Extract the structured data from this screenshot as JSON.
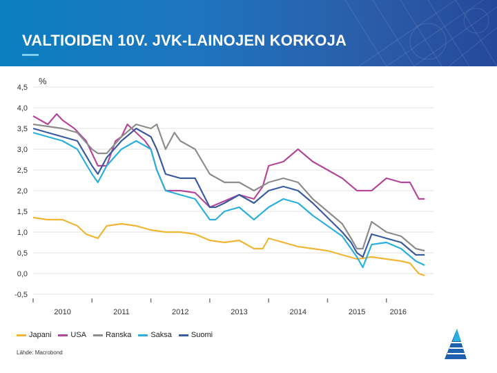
{
  "slide": {
    "title": "VALTIOIDEN 10V. JVK-LAINOJEN KORKOJA",
    "source": "Lähde: Macrobond"
  },
  "colors": {
    "header_start": "#0b7fc0",
    "header_end": "#25489a",
    "accent": "#7fcff2"
  },
  "chart_data": {
    "type": "line",
    "title": "",
    "ylabel": "%",
    "xlabel": "",
    "ylim": [
      -0.5,
      4.5
    ],
    "yticks": [
      -0.5,
      0.0,
      0.5,
      1.0,
      1.5,
      2.0,
      2.5,
      3.0,
      3.5,
      4.0,
      4.5
    ],
    "ytick_labels": [
      "-0,5",
      "0,0",
      "0,5",
      "1,0",
      "1,5",
      "2,0",
      "2,5",
      "3,0",
      "3,5",
      "4,0",
      "4,5"
    ],
    "xlim": [
      2009.5,
      2016.3
    ],
    "xtick_labels": [
      {
        "label": "2010",
        "x": 2010.0
      },
      {
        "label": "2011",
        "x": 2011.0
      },
      {
        "label": "2012",
        "x": 2012.0
      },
      {
        "label": "2013",
        "x": 2013.0
      },
      {
        "label": "2014",
        "x": 2014.0
      },
      {
        "label": "2015",
        "x": 2015.0
      },
      {
        "label": "2016",
        "x": 2015.7
      }
    ],
    "grid": true,
    "legend_position": "bottom-left",
    "series": [
      {
        "name": "Japani",
        "color": "#f2b534",
        "x": [
          2009.5,
          2009.75,
          2010.0,
          2010.25,
          2010.4,
          2010.6,
          2010.75,
          2011.0,
          2011.25,
          2011.5,
          2011.75,
          2012.0,
          2012.25,
          2012.5,
          2012.75,
          2013.0,
          2013.25,
          2013.4,
          2013.5,
          2013.75,
          2014.0,
          2014.25,
          2014.5,
          2014.75,
          2015.0,
          2015.25,
          2015.5,
          2015.75,
          2015.9,
          2016.05,
          2016.15
        ],
        "y": [
          1.35,
          1.3,
          1.3,
          1.15,
          0.95,
          0.85,
          1.15,
          1.2,
          1.15,
          1.05,
          1.0,
          1.0,
          0.95,
          0.8,
          0.75,
          0.8,
          0.6,
          0.6,
          0.85,
          0.75,
          0.65,
          0.6,
          0.55,
          0.45,
          0.35,
          0.4,
          0.35,
          0.3,
          0.25,
          0.0,
          -0.05
        ]
      },
      {
        "name": "USA",
        "color": "#b5479b",
        "x": [
          2009.5,
          2009.75,
          2009.9,
          2010.0,
          2010.2,
          2010.4,
          2010.6,
          2010.75,
          2010.9,
          2011.0,
          2011.1,
          2011.25,
          2011.4,
          2011.5,
          2011.6,
          2011.75,
          2012.0,
          2012.25,
          2012.5,
          2012.75,
          2013.0,
          2013.25,
          2013.4,
          2013.5,
          2013.75,
          2014.0,
          2014.25,
          2014.5,
          2014.75,
          2015.0,
          2015.25,
          2015.5,
          2015.75,
          2015.9,
          2016.05,
          2016.15
        ],
        "y": [
          3.8,
          3.6,
          3.85,
          3.7,
          3.5,
          3.2,
          2.6,
          2.6,
          3.2,
          3.3,
          3.6,
          3.4,
          3.2,
          3.0,
          2.5,
          2.0,
          2.0,
          1.95,
          1.6,
          1.75,
          1.9,
          1.8,
          2.1,
          2.6,
          2.7,
          3.0,
          2.7,
          2.5,
          2.3,
          2.0,
          2.0,
          2.3,
          2.2,
          2.2,
          1.8,
          1.8
        ]
      },
      {
        "name": "Ranska",
        "color": "#8c8c8c",
        "x": [
          2009.5,
          2009.75,
          2010.0,
          2010.25,
          2010.5,
          2010.6,
          2010.75,
          2011.0,
          2011.25,
          2011.5,
          2011.6,
          2011.75,
          2011.9,
          2012.0,
          2012.25,
          2012.5,
          2012.75,
          2013.0,
          2013.25,
          2013.5,
          2013.75,
          2014.0,
          2014.25,
          2014.5,
          2014.75,
          2014.9,
          2015.0,
          2015.1,
          2015.25,
          2015.5,
          2015.75,
          2016.0,
          2016.15
        ],
        "y": [
          3.6,
          3.55,
          3.5,
          3.4,
          3.0,
          2.9,
          2.9,
          3.3,
          3.6,
          3.5,
          3.6,
          3.0,
          3.4,
          3.2,
          3.0,
          2.4,
          2.2,
          2.2,
          2.0,
          2.2,
          2.3,
          2.2,
          1.8,
          1.5,
          1.2,
          0.85,
          0.6,
          0.6,
          1.25,
          1.0,
          0.9,
          0.6,
          0.55
        ]
      },
      {
        "name": "Saksa",
        "color": "#29b0df",
        "x": [
          2009.5,
          2009.75,
          2010.0,
          2010.25,
          2010.5,
          2010.6,
          2010.75,
          2011.0,
          2011.25,
          2011.5,
          2011.6,
          2011.75,
          2012.0,
          2012.25,
          2012.5,
          2012.6,
          2012.75,
          2013.0,
          2013.25,
          2013.5,
          2013.75,
          2014.0,
          2014.25,
          2014.5,
          2014.75,
          2014.9,
          2015.0,
          2015.1,
          2015.25,
          2015.5,
          2015.75,
          2016.0,
          2016.15
        ],
        "y": [
          3.4,
          3.3,
          3.2,
          3.0,
          2.4,
          2.2,
          2.6,
          3.0,
          3.2,
          3.0,
          2.5,
          2.0,
          1.9,
          1.8,
          1.3,
          1.3,
          1.5,
          1.6,
          1.3,
          1.6,
          1.8,
          1.7,
          1.4,
          1.15,
          0.9,
          0.6,
          0.4,
          0.15,
          0.7,
          0.75,
          0.6,
          0.3,
          0.2
        ]
      },
      {
        "name": "Suomi",
        "color": "#3a5aa0",
        "x": [
          2009.5,
          2009.75,
          2010.0,
          2010.25,
          2010.5,
          2010.6,
          2010.75,
          2011.0,
          2011.25,
          2011.5,
          2011.6,
          2011.75,
          2012.0,
          2012.25,
          2012.5,
          2012.6,
          2012.75,
          2013.0,
          2013.25,
          2013.5,
          2013.75,
          2014.0,
          2014.25,
          2014.5,
          2014.75,
          2014.9,
          2015.0,
          2015.1,
          2015.25,
          2015.5,
          2015.75,
          2016.0,
          2016.15
        ],
        "y": [
          3.5,
          3.4,
          3.3,
          3.2,
          2.6,
          2.4,
          2.8,
          3.2,
          3.5,
          3.3,
          3.0,
          2.4,
          2.3,
          2.3,
          1.6,
          1.6,
          1.7,
          1.9,
          1.7,
          2.0,
          2.1,
          2.0,
          1.7,
          1.35,
          1.0,
          0.75,
          0.5,
          0.4,
          0.95,
          0.85,
          0.75,
          0.45,
          0.45
        ]
      }
    ]
  }
}
